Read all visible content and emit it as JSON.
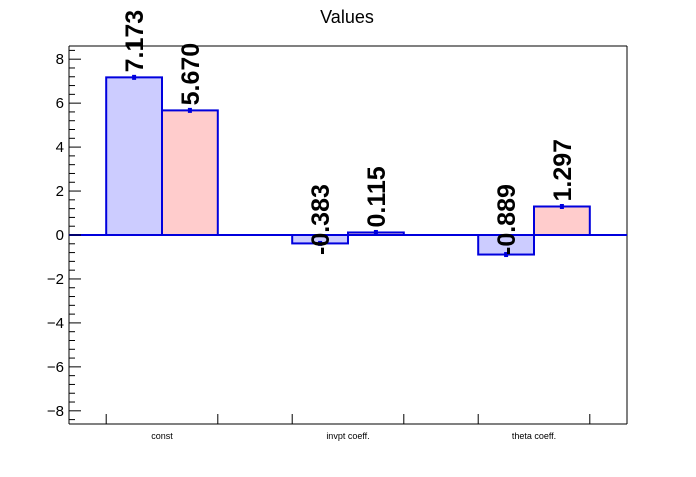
{
  "chart_data": {
    "type": "bar",
    "title": "Values",
    "xlabel": "",
    "ylabel": "",
    "categories": [
      "const",
      "invpt coeff.",
      "theta coeff."
    ],
    "series": [
      {
        "values": [
          7.173,
          -0.383,
          -0.889
        ],
        "labels": [
          "7.173",
          "-0.383",
          "-0.889"
        ],
        "fill": "#ccccff"
      },
      {
        "values": [
          5.67,
          0.115,
          1.297
        ],
        "labels": [
          "5.670",
          "0.115",
          "1.297"
        ],
        "fill": "#ffcccc"
      }
    ],
    "ylim": [
      -8.6,
      8.6
    ],
    "yticks": [
      -8,
      -6,
      -4,
      -2,
      0,
      2,
      4,
      6,
      8
    ],
    "ytick_labels": [
      "−8",
      "−6",
      "−4",
      "−2",
      "0",
      "2",
      "4",
      "6",
      "8"
    ],
    "grid": false,
    "colors": {
      "outline": "#0000dd",
      "axis": "#000000",
      "zero_line": "#0000dd"
    }
  }
}
